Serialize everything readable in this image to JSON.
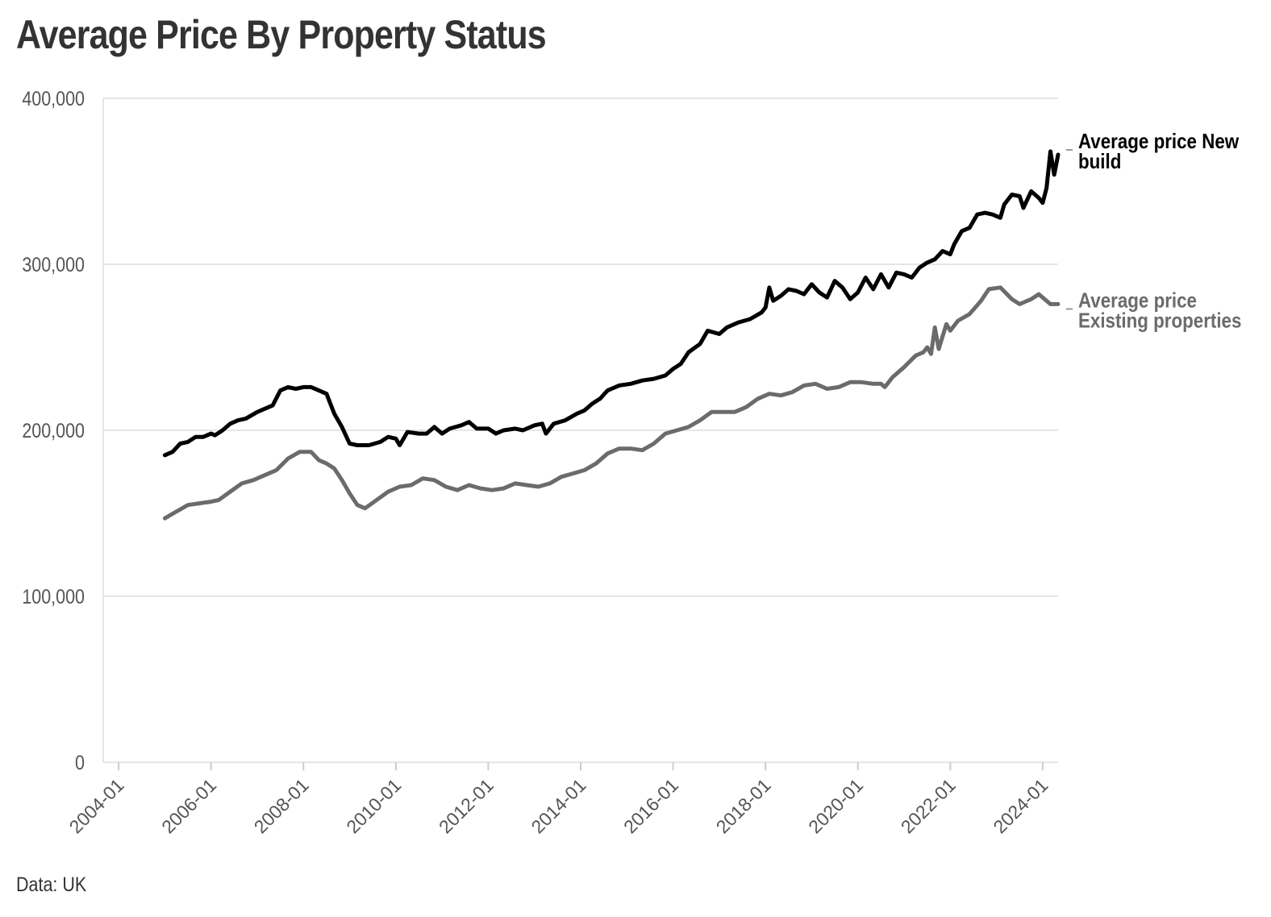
{
  "title": "Average Price By Property Status",
  "footer": "Data: UK",
  "chart_data": {
    "type": "line",
    "title": "Average Price By Property Status",
    "xlabel": "",
    "ylabel": "",
    "ylim": [
      0,
      400000
    ],
    "xlim": [
      "2004-01",
      "2024-03"
    ],
    "y_ticks": [
      0,
      100000,
      200000,
      300000,
      400000
    ],
    "y_tick_labels": [
      "0",
      "100,000",
      "200,000",
      "300,000",
      "400,000"
    ],
    "x_ticks": [
      "2004-01",
      "2006-01",
      "2008-01",
      "2010-01",
      "2012-01",
      "2014-01",
      "2016-01",
      "2018-01",
      "2020-01",
      "2022-01",
      "2024-01"
    ],
    "grid": "horizontal",
    "legend": "direct labels at right end of lines",
    "series": [
      {
        "name": "Average price New build",
        "label_lines": [
          "Average price New",
          "build"
        ],
        "color": "#000000",
        "points": [
          [
            "2005-01",
            185000
          ],
          [
            "2005-03",
            187000
          ],
          [
            "2005-05",
            192000
          ],
          [
            "2005-07",
            193000
          ],
          [
            "2005-09",
            196000
          ],
          [
            "2005-11",
            196000
          ],
          [
            "2006-01",
            198000
          ],
          [
            "2006-02",
            197000
          ],
          [
            "2006-04",
            200000
          ],
          [
            "2006-06",
            204000
          ],
          [
            "2006-08",
            206000
          ],
          [
            "2006-10",
            207000
          ],
          [
            "2007-01",
            211000
          ],
          [
            "2007-03",
            213000
          ],
          [
            "2007-05",
            215000
          ],
          [
            "2007-07",
            224000
          ],
          [
            "2007-09",
            226000
          ],
          [
            "2007-11",
            225000
          ],
          [
            "2008-01",
            226000
          ],
          [
            "2008-03",
            226000
          ],
          [
            "2008-05",
            224000
          ],
          [
            "2008-07",
            222000
          ],
          [
            "2008-09",
            210000
          ],
          [
            "2008-11",
            202000
          ],
          [
            "2009-01",
            192000
          ],
          [
            "2009-03",
            191000
          ],
          [
            "2009-06",
            191000
          ],
          [
            "2009-09",
            193000
          ],
          [
            "2009-11",
            196000
          ],
          [
            "2010-01",
            195000
          ],
          [
            "2010-02",
            191000
          ],
          [
            "2010-04",
            199000
          ],
          [
            "2010-07",
            198000
          ],
          [
            "2010-09",
            198000
          ],
          [
            "2010-11",
            202000
          ],
          [
            "2011-01",
            198000
          ],
          [
            "2011-03",
            201000
          ],
          [
            "2011-06",
            203000
          ],
          [
            "2011-08",
            205000
          ],
          [
            "2011-10",
            201000
          ],
          [
            "2012-01",
            201000
          ],
          [
            "2012-03",
            198000
          ],
          [
            "2012-05",
            200000
          ],
          [
            "2012-08",
            201000
          ],
          [
            "2012-10",
            200000
          ],
          [
            "2013-01",
            203000
          ],
          [
            "2013-03",
            204000
          ],
          [
            "2013-04",
            198000
          ],
          [
            "2013-06",
            204000
          ],
          [
            "2013-09",
            206000
          ],
          [
            "2013-12",
            210000
          ],
          [
            "2014-02",
            212000
          ],
          [
            "2014-04",
            216000
          ],
          [
            "2014-06",
            219000
          ],
          [
            "2014-08",
            224000
          ],
          [
            "2014-11",
            227000
          ],
          [
            "2015-02",
            228000
          ],
          [
            "2015-05",
            230000
          ],
          [
            "2015-08",
            231000
          ],
          [
            "2015-11",
            233000
          ],
          [
            "2016-01",
            237000
          ],
          [
            "2016-03",
            240000
          ],
          [
            "2016-05",
            247000
          ],
          [
            "2016-08",
            252000
          ],
          [
            "2016-10",
            260000
          ],
          [
            "2017-01",
            258000
          ],
          [
            "2017-03",
            262000
          ],
          [
            "2017-06",
            265000
          ],
          [
            "2017-09",
            267000
          ],
          [
            "2017-12",
            271000
          ],
          [
            "2018-01",
            274000
          ],
          [
            "2018-02",
            286000
          ],
          [
            "2018-03",
            278000
          ],
          [
            "2018-05",
            281000
          ],
          [
            "2018-07",
            285000
          ],
          [
            "2018-09",
            284000
          ],
          [
            "2018-11",
            282000
          ],
          [
            "2019-01",
            288000
          ],
          [
            "2019-03",
            283000
          ],
          [
            "2019-05",
            280000
          ],
          [
            "2019-07",
            290000
          ],
          [
            "2019-09",
            286000
          ],
          [
            "2019-11",
            279000
          ],
          [
            "2020-01",
            283000
          ],
          [
            "2020-03",
            292000
          ],
          [
            "2020-05",
            285000
          ],
          [
            "2020-07",
            294000
          ],
          [
            "2020-09",
            286000
          ],
          [
            "2020-11",
            295000
          ],
          [
            "2021-01",
            294000
          ],
          [
            "2021-03",
            292000
          ],
          [
            "2021-05",
            298000
          ],
          [
            "2021-07",
            301000
          ],
          [
            "2021-09",
            303000
          ],
          [
            "2021-11",
            308000
          ],
          [
            "2022-01",
            306000
          ],
          [
            "2022-02",
            312000
          ],
          [
            "2022-04",
            320000
          ],
          [
            "2022-06",
            322000
          ],
          [
            "2022-08",
            330000
          ],
          [
            "2022-10",
            331000
          ],
          [
            "2022-12",
            330000
          ],
          [
            "2023-02",
            328000
          ],
          [
            "2023-03",
            336000
          ],
          [
            "2023-05",
            342000
          ],
          [
            "2023-07",
            341000
          ],
          [
            "2023-08",
            334000
          ],
          [
            "2023-10",
            344000
          ],
          [
            "2023-12",
            340000
          ],
          [
            "2024-01",
            337000
          ],
          [
            "2024-02",
            346000
          ],
          [
            "2024-03",
            368000
          ],
          [
            "2024-04",
            354000
          ],
          [
            "2024-05",
            366000
          ]
        ]
      },
      {
        "name": "Average price Existing properties",
        "label_lines": [
          "Average price",
          "Existing properties"
        ],
        "color": "#6b6b6b",
        "points": [
          [
            "2005-01",
            147000
          ],
          [
            "2005-04",
            151000
          ],
          [
            "2005-07",
            155000
          ],
          [
            "2005-10",
            156000
          ],
          [
            "2006-01",
            157000
          ],
          [
            "2006-03",
            158000
          ],
          [
            "2006-06",
            163000
          ],
          [
            "2006-09",
            168000
          ],
          [
            "2006-12",
            170000
          ],
          [
            "2007-03",
            173000
          ],
          [
            "2007-06",
            176000
          ],
          [
            "2007-09",
            183000
          ],
          [
            "2007-12",
            187000
          ],
          [
            "2008-03",
            187000
          ],
          [
            "2008-05",
            182000
          ],
          [
            "2008-07",
            180000
          ],
          [
            "2008-09",
            177000
          ],
          [
            "2008-11",
            170000
          ],
          [
            "2009-01",
            162000
          ],
          [
            "2009-03",
            155000
          ],
          [
            "2009-05",
            153000
          ],
          [
            "2009-08",
            158000
          ],
          [
            "2009-11",
            163000
          ],
          [
            "2010-02",
            166000
          ],
          [
            "2010-05",
            167000
          ],
          [
            "2010-08",
            171000
          ],
          [
            "2010-11",
            170000
          ],
          [
            "2011-02",
            166000
          ],
          [
            "2011-05",
            164000
          ],
          [
            "2011-08",
            167000
          ],
          [
            "2011-11",
            165000
          ],
          [
            "2012-02",
            164000
          ],
          [
            "2012-05",
            165000
          ],
          [
            "2012-08",
            168000
          ],
          [
            "2012-11",
            167000
          ],
          [
            "2013-02",
            166000
          ],
          [
            "2013-05",
            168000
          ],
          [
            "2013-08",
            172000
          ],
          [
            "2013-11",
            174000
          ],
          [
            "2014-02",
            176000
          ],
          [
            "2014-05",
            180000
          ],
          [
            "2014-08",
            186000
          ],
          [
            "2014-11",
            189000
          ],
          [
            "2015-02",
            189000
          ],
          [
            "2015-05",
            188000
          ],
          [
            "2015-08",
            192000
          ],
          [
            "2015-11",
            198000
          ],
          [
            "2016-02",
            200000
          ],
          [
            "2016-05",
            202000
          ],
          [
            "2016-08",
            206000
          ],
          [
            "2016-11",
            211000
          ],
          [
            "2017-02",
            211000
          ],
          [
            "2017-05",
            211000
          ],
          [
            "2017-08",
            214000
          ],
          [
            "2017-11",
            219000
          ],
          [
            "2018-02",
            222000
          ],
          [
            "2018-05",
            221000
          ],
          [
            "2018-08",
            223000
          ],
          [
            "2018-11",
            227000
          ],
          [
            "2019-02",
            228000
          ],
          [
            "2019-05",
            225000
          ],
          [
            "2019-08",
            226000
          ],
          [
            "2019-11",
            229000
          ],
          [
            "2020-02",
            229000
          ],
          [
            "2020-05",
            228000
          ],
          [
            "2020-07",
            228000
          ],
          [
            "2020-08",
            226000
          ],
          [
            "2020-10",
            232000
          ],
          [
            "2021-01",
            238000
          ],
          [
            "2021-04",
            245000
          ],
          [
            "2021-06",
            247000
          ],
          [
            "2021-07",
            250000
          ],
          [
            "2021-08",
            246000
          ],
          [
            "2021-09",
            262000
          ],
          [
            "2021-10",
            249000
          ],
          [
            "2021-12",
            264000
          ],
          [
            "2022-01",
            260000
          ],
          [
            "2022-03",
            266000
          ],
          [
            "2022-06",
            270000
          ],
          [
            "2022-09",
            278000
          ],
          [
            "2022-11",
            285000
          ],
          [
            "2023-02",
            286000
          ],
          [
            "2023-05",
            279000
          ],
          [
            "2023-07",
            276000
          ],
          [
            "2023-10",
            279000
          ],
          [
            "2023-12",
            282000
          ],
          [
            "2024-02",
            278000
          ],
          [
            "2024-03",
            276000
          ],
          [
            "2024-05",
            276000
          ]
        ]
      }
    ]
  }
}
